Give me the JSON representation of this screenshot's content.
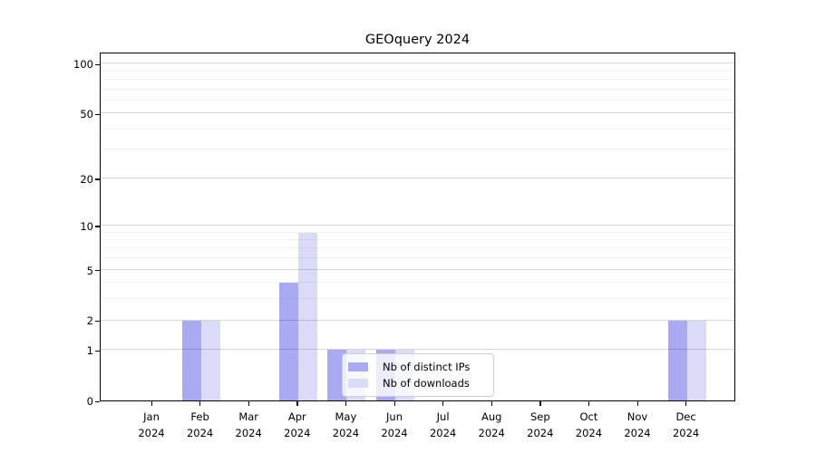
{
  "chart_data": {
    "type": "bar",
    "title": "GEOquery 2024",
    "categories": [
      "Jan",
      "Feb",
      "Mar",
      "Apr",
      "May",
      "Jun",
      "Jul",
      "Aug",
      "Sep",
      "Oct",
      "Nov",
      "Dec"
    ],
    "year": "2024",
    "series": [
      {
        "name": "Nb of distinct IPs",
        "color": "#aaaaf3",
        "values": [
          0,
          2,
          0,
          4,
          1,
          1,
          0,
          0,
          0,
          0,
          0,
          2
        ]
      },
      {
        "name": "Nb of downloads",
        "color": "#dbdbf8",
        "values": [
          0,
          2,
          0,
          9,
          1,
          1,
          0,
          0,
          0,
          0,
          0,
          2
        ]
      }
    ],
    "yscale": "log1p",
    "ylim": [
      0,
      117
    ],
    "ytick_labels": [
      "0",
      "1",
      "2",
      "5",
      "10",
      "20",
      "50",
      "100"
    ],
    "ytick_values": [
      0,
      1,
      2,
      5,
      10,
      20,
      50,
      100
    ],
    "minor_gridline_values": [
      3,
      4,
      6,
      7,
      8,
      9,
      30,
      40,
      60,
      70,
      80,
      90
    ],
    "grid": "horizontal",
    "legend_position": "inside-bottom-center",
    "colors": {
      "major_grid": "#d8d8d8",
      "minor_grid": "#f0f0f0",
      "axis": "#000000",
      "background": "#ffffff"
    }
  }
}
